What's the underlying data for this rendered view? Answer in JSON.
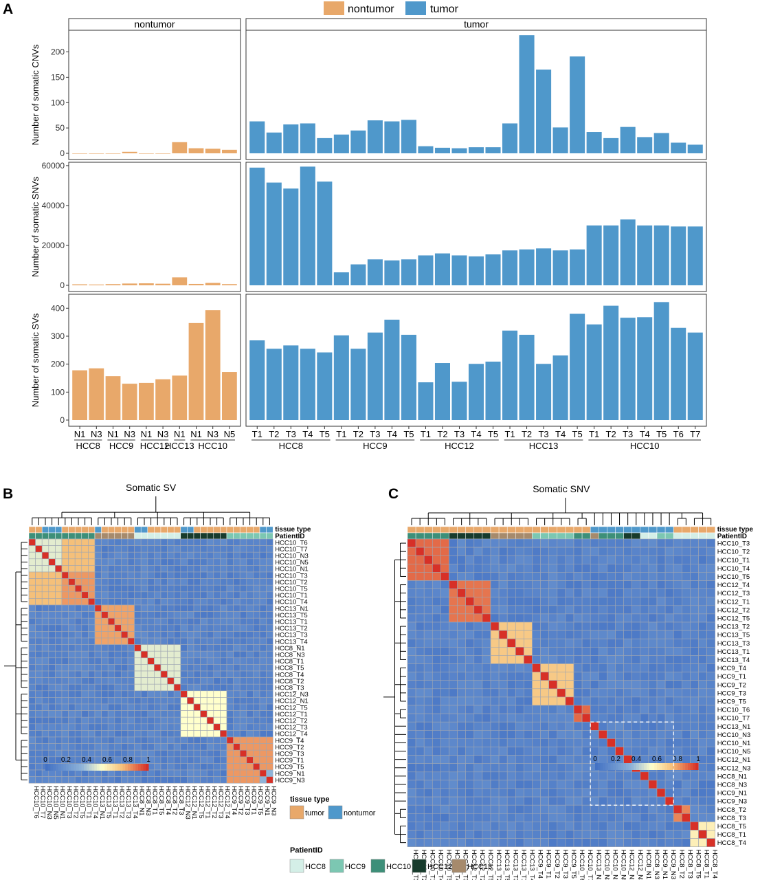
{
  "panel_letters": {
    "a": "A",
    "b": "B",
    "c": "C"
  },
  "legend_top": {
    "nontumor": "nontumor",
    "tumor": "tumor"
  },
  "colors": {
    "nontumor": "#E8A86A",
    "tumor": "#4F98CB",
    "tissue_tumor": "#E8A86A",
    "tissue_nontumor": "#4F98CB",
    "HCC8": "#D4EFE7",
    "HCC9": "#7CC7B2",
    "HCC10": "#3D8F79",
    "HCC12": "#173B2C",
    "HCC13": "#A68A6C",
    "heat_low": "#4472C4",
    "heat_mid1": "#8EB3D9",
    "heat_mid2": "#FFFFCC",
    "heat_mid3": "#F5C07A",
    "heat_high": "#D73027"
  },
  "chart_data": [
    {
      "type": "bar",
      "panel": "A",
      "facets": [
        "nontumor",
        "tumor"
      ],
      "rows": [
        {
          "ylabel": "Number of somatic CNVs",
          "yticks": [
            0,
            50,
            100,
            150,
            200
          ],
          "ylim": [
            0,
            240
          ],
          "nontumor": [
            0,
            0,
            0,
            3,
            0,
            0,
            22,
            10,
            9,
            7
          ],
          "tumor": [
            63,
            41,
            57,
            59,
            30,
            37,
            45,
            65,
            63,
            66,
            14,
            11,
            10,
            12,
            12,
            59,
            233,
            165,
            51,
            191,
            42,
            30,
            52,
            32,
            40,
            21,
            17
          ]
        },
        {
          "ylabel": "Number of somatic SNVs",
          "yticks": [
            0,
            20000,
            40000,
            60000
          ],
          "ylim": [
            0,
            61000
          ],
          "nontumor": [
            500,
            400,
            600,
            900,
            1000,
            800,
            4000,
            700,
            1200,
            600
          ],
          "tumor": [
            59000,
            51500,
            48500,
            59500,
            52000,
            6500,
            10500,
            13000,
            12500,
            13000,
            15000,
            16000,
            15000,
            14500,
            15500,
            17500,
            18000,
            18500,
            17500,
            18000,
            30000,
            30000,
            33000,
            30000,
            30000,
            29500,
            29500
          ]
        },
        {
          "ylabel": "Number of somatic SVs",
          "yticks": [
            0,
            100,
            200,
            300,
            400
          ],
          "ylim": [
            0,
            445
          ],
          "nontumor": [
            178,
            185,
            157,
            130,
            133,
            146,
            159,
            347,
            393,
            172
          ],
          "tumor": [
            285,
            255,
            267,
            255,
            242,
            303,
            255,
            313,
            359,
            305,
            135,
            204,
            137,
            201,
            209,
            320,
            305,
            201,
            231,
            380,
            342,
            409,
            366,
            368,
            422,
            330,
            313
          ]
        }
      ],
      "nontumor_labels": [
        "N1",
        "N3",
        "N1",
        "N3",
        "N1",
        "N3",
        "N1",
        "N1",
        "N3",
        "N5"
      ],
      "nontumor_groups": [
        {
          "name": "HCC8",
          "samples": [
            "N1",
            "N3"
          ]
        },
        {
          "name": "HCC9",
          "samples": [
            "N1",
            "N3"
          ]
        },
        {
          "name": "HCC12",
          "samples": [
            "N1",
            "N3"
          ]
        },
        {
          "name": "HCC13",
          "samples": [
            "N1"
          ]
        },
        {
          "name": "HCC10",
          "samples": [
            "N1",
            "N3",
            "N5"
          ]
        }
      ],
      "tumor_labels": [
        "T1",
        "T2",
        "T3",
        "T4",
        "T5",
        "T1",
        "T2",
        "T3",
        "T4",
        "T5",
        "T1",
        "T2",
        "T3",
        "T4",
        "T5",
        "T1",
        "T2",
        "T3",
        "T4",
        "T5",
        "T1",
        "T2",
        "T3",
        "T4",
        "T5",
        "T6",
        "T7"
      ],
      "tumor_groups": [
        {
          "name": "HCC8",
          "count": 5
        },
        {
          "name": "HCC9",
          "count": 5
        },
        {
          "name": "HCC12",
          "count": 5
        },
        {
          "name": "HCC13",
          "count": 5
        },
        {
          "name": "HCC10",
          "count": 7
        }
      ]
    },
    {
      "type": "heatmap",
      "panel": "B",
      "title": "Somatic SV",
      "samples": [
        "HCC10_T6",
        "HCC10_T7",
        "HCC10_N3",
        "HCC10_N5",
        "HCC10_N1",
        "HCC10_T3",
        "HCC10_T2",
        "HCC10_T5",
        "HCC10_T1",
        "HCC10_T4",
        "HCC13_N1",
        "HCC13_T5",
        "HCC13_T1",
        "HCC13_T2",
        "HCC13_T3",
        "HCC13_T4",
        "HCC8_N1",
        "HCC8_N3",
        "HCC8_T1",
        "HCC8_T5",
        "HCC8_T4",
        "HCC8_T2",
        "HCC8_T3",
        "HCC12_N3",
        "HCC12_N1",
        "HCC12_T5",
        "HCC12_T1",
        "HCC12_T2",
        "HCC12_T3",
        "HCC12_T4",
        "HCC9_T4",
        "HCC9_T2",
        "HCC9_T3",
        "HCC9_T1",
        "HCC9_T5",
        "HCC9_N1",
        "HCC9_N3"
      ],
      "blocks": [
        {
          "start": 0,
          "end": 10,
          "value": 0.75,
          "sub": [
            {
              "start": 0,
              "end": 5,
              "value": 0.5
            },
            {
              "start": 5,
              "end": 10,
              "value": 0.82
            }
          ]
        },
        {
          "start": 10,
          "end": 16,
          "value": 0.8,
          "sub": [
            {
              "start": 10,
              "end": 11,
              "value": 0.4
            }
          ]
        },
        {
          "start": 16,
          "end": 23,
          "value": 0.5
        },
        {
          "start": 23,
          "end": 30,
          "value": 0.55
        },
        {
          "start": 30,
          "end": 37,
          "value": 0.82,
          "sub": [
            {
              "start": 35,
              "end": 37,
              "value": 0.35
            }
          ]
        }
      ],
      "annotation_rows": [
        "tissue type",
        "PatientID"
      ],
      "colorbar_ticks": [
        "0",
        "0.2",
        "0.4",
        "0.6",
        "0.8",
        "1"
      ]
    },
    {
      "type": "heatmap",
      "panel": "C",
      "title": "Somatic SNV",
      "samples": [
        "HCC10_T3",
        "HCC10_T2",
        "HCC10_T1",
        "HCC10_T4",
        "HCC10_T5",
        "HCC12_T4",
        "HCC12_T3",
        "HCC12_T1",
        "HCC12_T2",
        "HCC12_T5",
        "HCC13_T2",
        "HCC13_T5",
        "HCC13_T3",
        "HCC13_T1",
        "HCC13_T4",
        "HCC9_T4",
        "HCC9_T1",
        "HCC9_T2",
        "HCC9_T3",
        "HCC9_T5",
        "HCC10_T6",
        "HCC10_T7",
        "HCC13_N1",
        "HCC10_N3",
        "HCC10_N1",
        "HCC10_N5",
        "HCC12_N1",
        "HCC12_N3",
        "HCC8_N1",
        "HCC8_N3",
        "HCC9_N1",
        "HCC9_N3",
        "HCC8_T2",
        "HCC8_T3",
        "HCC8_T5",
        "HCC8_T1",
        "HCC8_T4"
      ],
      "blocks": [
        {
          "start": 0,
          "end": 5,
          "value": 0.9
        },
        {
          "start": 5,
          "end": 10,
          "value": 0.88
        },
        {
          "start": 10,
          "end": 15,
          "value": 0.72
        },
        {
          "start": 15,
          "end": 20,
          "value": 0.72
        },
        {
          "start": 20,
          "end": 22,
          "value": 0.9
        },
        {
          "start": 32,
          "end": 34,
          "value": 0.85
        },
        {
          "start": 34,
          "end": 37,
          "value": 0.6
        }
      ],
      "annotation_rows": [
        "tissue type",
        "PatientID"
      ],
      "colorbar_ticks": [
        "0",
        "0.2",
        "0.4",
        "0.6",
        "0.8",
        "1"
      ]
    }
  ],
  "legend_bottom": {
    "tissue_title": "tissue type",
    "tissue_items": [
      "tumor",
      "nontumor"
    ],
    "patient_title": "PatientID",
    "patient_items": [
      "HCC8",
      "HCC9",
      "HCC10",
      "HCC12",
      "HCC13"
    ]
  }
}
